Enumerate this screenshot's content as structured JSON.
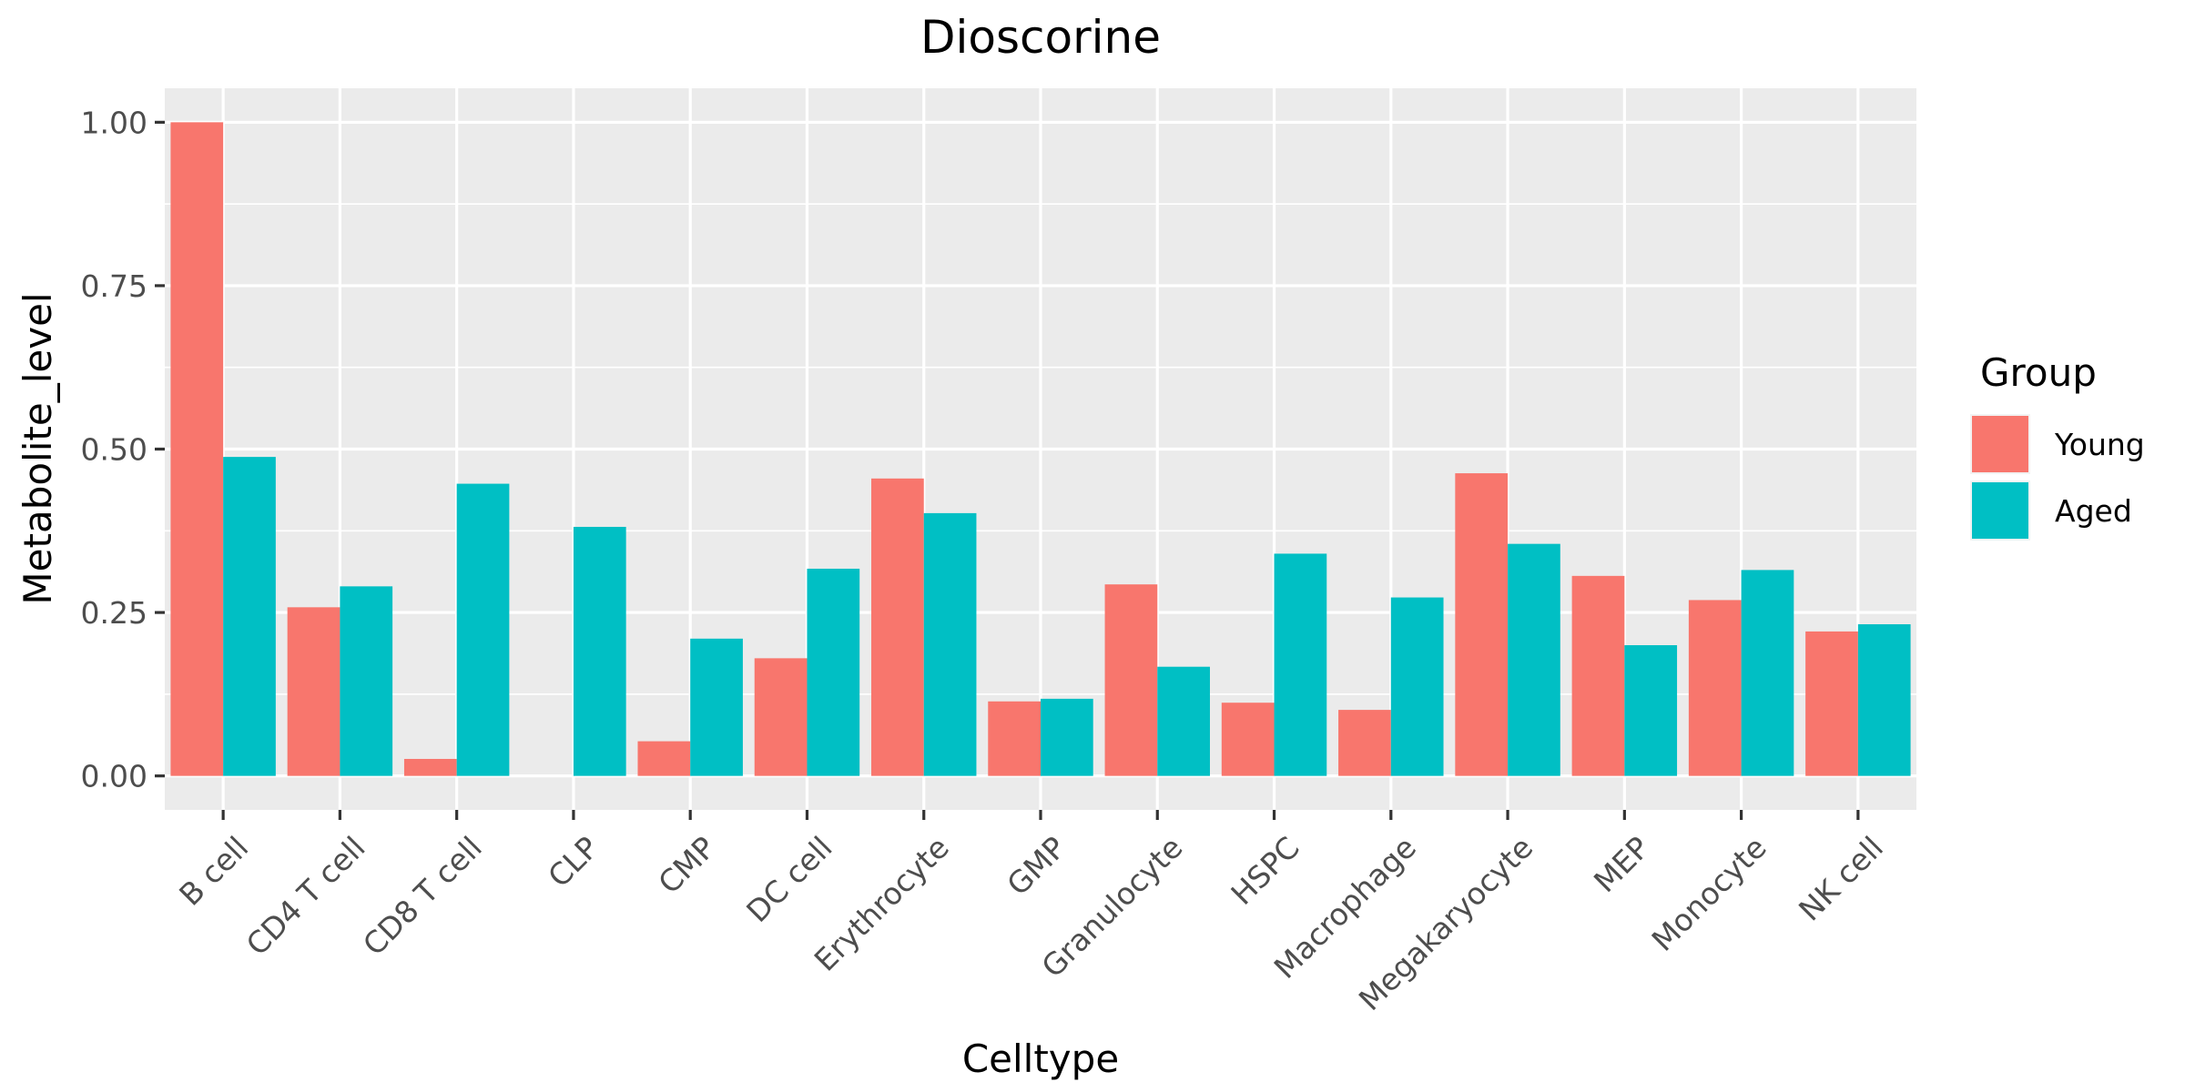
{
  "chart_data": {
    "type": "bar",
    "title": "Dioscorine",
    "xlabel": "Celltype",
    "ylabel": "Metabolite_level",
    "categories": [
      "B cell",
      "CD4 T cell",
      "CD8 T cell",
      "CLP",
      "CMP",
      "DC cell",
      "Erythrocyte",
      "GMP",
      "Granulocyte",
      "HSPC",
      "Macrophage",
      "Megakaryocyte",
      "MEP",
      "Monocyte",
      "NK cell"
    ],
    "series": [
      {
        "name": "Young",
        "color": "#F8766D",
        "values": [
          1.0,
          0.258,
          0.026,
          0.0,
          0.053,
          0.18,
          0.455,
          0.114,
          0.293,
          0.112,
          0.101,
          0.463,
          0.306,
          0.269,
          0.221
        ]
      },
      {
        "name": "Aged",
        "color": "#00BFC4",
        "values": [
          0.488,
          0.29,
          0.447,
          0.381,
          0.21,
          0.317,
          0.402,
          0.118,
          0.167,
          0.34,
          0.273,
          0.355,
          0.2,
          0.315,
          0.232
        ]
      }
    ],
    "ylim": [
      -0.052,
      1.052
    ],
    "yticks": [
      0.0,
      0.25,
      0.5,
      0.75,
      1.0
    ],
    "ytick_labels": [
      "0.00",
      "0.25",
      "0.50",
      "0.75",
      "1.00"
    ],
    "legend": {
      "title": "Group",
      "position": "right"
    },
    "grid": true,
    "panel_color": "#EBEBEB",
    "grid_color": "#FFFFFF"
  }
}
